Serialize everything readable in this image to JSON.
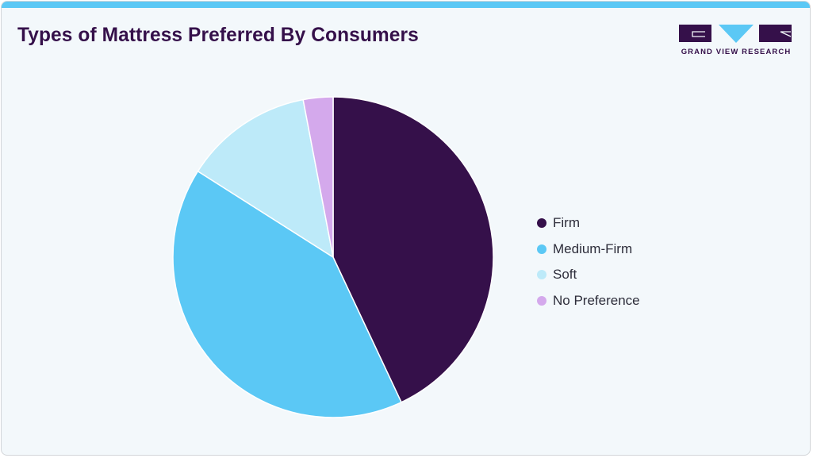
{
  "header": {
    "title": "Types of Mattress Preferred By Consumers",
    "accent_color": "#5bc8f5"
  },
  "logo": {
    "text": "GRAND VIEW RESEARCH",
    "primary_color": "#35104a",
    "secondary_color": "#5bc8f5"
  },
  "legend": {
    "items": [
      {
        "label": "Firm",
        "color": "#35104a"
      },
      {
        "label": "Medium-Firm",
        "color": "#5bc8f5"
      },
      {
        "label": "Soft",
        "color": "#bdeaf9"
      },
      {
        "label": "No Preference",
        "color": "#d4a9ec"
      }
    ]
  },
  "chart_data": {
    "type": "pie",
    "title": "Types of Mattress Preferred By Consumers",
    "categories": [
      "Firm",
      "Medium-Firm",
      "Soft",
      "No Preference"
    ],
    "values": [
      43,
      41,
      13,
      3
    ],
    "unit": "%",
    "colors": [
      "#35104a",
      "#5bc8f5",
      "#bdeaf9",
      "#d4a9ec"
    ],
    "start_angle_deg": 0,
    "direction": "clockwise",
    "legend_position": "right"
  }
}
